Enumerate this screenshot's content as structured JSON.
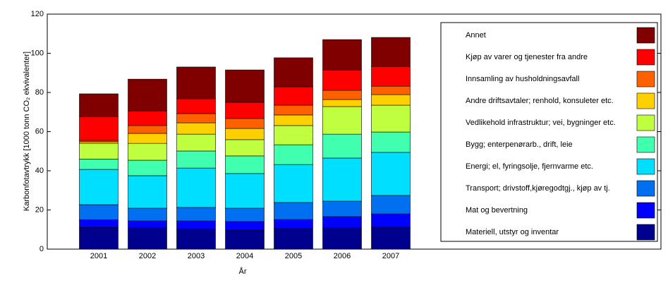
{
  "chart_data": {
    "type": "stacked_bar",
    "xlabel": "År",
    "ylabel": "Karbonfotavtrykk [1000 tonn CO₂ ekvivalenter]",
    "categories": [
      "2001",
      "2002",
      "2003",
      "2004",
      "2005",
      "2006",
      "2007"
    ],
    "ylim": [
      0,
      120
    ],
    "yticks": [
      0,
      20,
      40,
      60,
      80,
      100,
      120
    ],
    "series": [
      {
        "name": "Materiell, utstyr og inventar",
        "color": "#00008f",
        "values": [
          11,
          10.8,
          10.1,
          9.7,
          10.5,
          10.8,
          11.2
        ]
      },
      {
        "name": "Mat og bevertning",
        "color": "#0000ff",
        "values": [
          4,
          3.6,
          4.3,
          4.4,
          4.6,
          5.8,
          6.8
        ]
      },
      {
        "name": "Transport; drivstoff,kjøregodtgj., kjøp av tj.",
        "color": "#0070f0",
        "values": [
          7.7,
          6.5,
          6.9,
          6.8,
          8.7,
          7.9,
          9.4
        ]
      },
      {
        "name": "Energi; el, fyringsolje, fjernvarme etc.",
        "color": "#00dfff",
        "values": [
          18,
          16.6,
          20.1,
          17.7,
          19.4,
          22,
          22
        ]
      },
      {
        "name": "Bygg; enterpenørarb., drift, leie",
        "color": "#40ffaf",
        "values": [
          5.3,
          7.9,
          8.7,
          9,
          10.1,
          12.2,
          10.4
        ]
      },
      {
        "name": "Vedlikehold infrastruktur; vei, bygninger etc.",
        "color": "#bfff3f",
        "values": [
          8,
          8.6,
          8.6,
          8.3,
          9.8,
          14.1,
          13.7
        ]
      },
      {
        "name": "Andre driftsavtaler; renhold, konsuleter etc.",
        "color": "#ffd000",
        "values": [
          0.8,
          5.1,
          5.8,
          5.7,
          5.4,
          3.6,
          5.4
        ]
      },
      {
        "name": "Innsamling av husholdningsavfall",
        "color": "#ff6000",
        "values": [
          0.7,
          4,
          4.7,
          5.1,
          5,
          4.7,
          4.3
        ]
      },
      {
        "name": "Kjøp av varer og tjenester fra andre",
        "color": "#ff0000",
        "values": [
          12.2,
          7.5,
          7.6,
          8.3,
          9.4,
          10.4,
          10.1
        ]
      },
      {
        "name": "Annet",
        "color": "#800000",
        "values": [
          11.6,
          16.2,
          16.2,
          16.5,
          14.8,
          15.5,
          14.8
        ]
      }
    ]
  }
}
